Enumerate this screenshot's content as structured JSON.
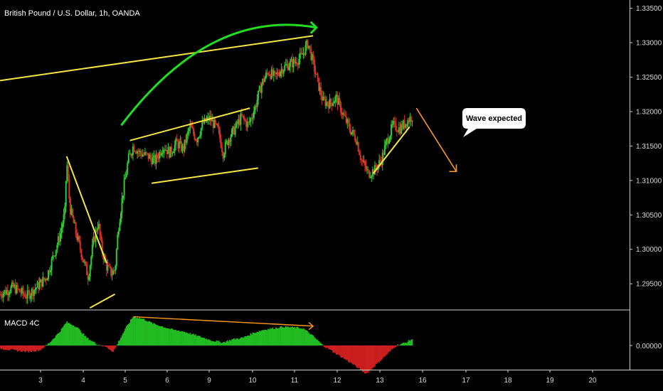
{
  "header": {
    "title": "British Pound / U.S. Dollar, 1h, OANDA"
  },
  "indicator": {
    "name": "MACD 4C",
    "zero_label": "0.00000"
  },
  "annotation": {
    "callout": "Wave expected"
  },
  "colors": {
    "background": "#000000",
    "up_candle": "#2ecc2e",
    "down_candle": "#d93025",
    "trendline": "#f5e642",
    "arrow_green": "#22dd22",
    "arrow_orange": "#ff9a1a",
    "macd_up": "#22bb22",
    "macd_down": "#cc1f1f"
  },
  "chart_data": [
    {
      "type": "candlestick",
      "title": "British Pound / U.S. Dollar, 1h, OANDA",
      "x_ticks": [
        "3",
        "4",
        "5",
        "6",
        "9",
        "10",
        "11",
        "12",
        "13",
        "16",
        "17",
        "18",
        "19",
        "20"
      ],
      "x_range": [
        2.0,
        20.9
      ],
      "y_ticks": [
        "1.29500",
        "1.30000",
        "1.30500",
        "1.31000",
        "1.31500",
        "1.32000",
        "1.32500",
        "1.33000",
        "1.33500"
      ],
      "y_range": [
        1.2912,
        1.3362
      ],
      "price_path": [
        [
          2.0,
          1.2935
        ],
        [
          2.4,
          1.2945
        ],
        [
          2.8,
          1.2932
        ],
        [
          3.1,
          1.2945
        ],
        [
          3.4,
          1.296
        ],
        [
          3.6,
          1.299
        ],
        [
          3.8,
          1.302
        ],
        [
          3.95,
          1.3055
        ],
        [
          4.0,
          1.313
        ],
        [
          4.1,
          1.306
        ],
        [
          4.3,
          1.302
        ],
        [
          4.5,
          1.2985
        ],
        [
          4.65,
          1.296
        ],
        [
          4.8,
          1.301
        ],
        [
          4.95,
          1.304
        ],
        [
          5.05,
          1.3
        ],
        [
          5.2,
          1.2975
        ],
        [
          5.35,
          1.2965
        ],
        [
          5.45,
          1.297
        ],
        [
          5.55,
          1.303
        ],
        [
          5.7,
          1.3085
        ],
        [
          5.85,
          1.313
        ],
        [
          6.0,
          1.315
        ],
        [
          6.2,
          1.314
        ],
        [
          6.45,
          1.3135
        ],
        [
          6.65,
          1.3128
        ],
        [
          6.9,
          1.315
        ],
        [
          7.1,
          1.314
        ],
        [
          7.3,
          1.3155
        ],
        [
          7.5,
          1.3145
        ],
        [
          7.7,
          1.3178
        ],
        [
          7.9,
          1.316
        ],
        [
          8.1,
          1.3183
        ],
        [
          8.3,
          1.319
        ],
        [
          8.55,
          1.3172
        ],
        [
          8.7,
          1.314
        ],
        [
          8.85,
          1.316
        ],
        [
          9.05,
          1.3175
        ],
        [
          9.25,
          1.3192
        ],
        [
          9.45,
          1.318
        ],
        [
          9.65,
          1.3205
        ],
        [
          9.85,
          1.324
        ],
        [
          10.05,
          1.3258
        ],
        [
          10.25,
          1.325
        ],
        [
          10.45,
          1.3262
        ],
        [
          10.65,
          1.3268
        ],
        [
          10.85,
          1.3272
        ],
        [
          11.05,
          1.328
        ],
        [
          11.25,
          1.33
        ],
        [
          11.4,
          1.327
        ],
        [
          11.55,
          1.324
        ],
        [
          11.7,
          1.3215
        ],
        [
          11.9,
          1.3212
        ],
        [
          12.1,
          1.322
        ],
        [
          12.3,
          1.3195
        ],
        [
          12.5,
          1.3175
        ],
        [
          12.7,
          1.316
        ],
        [
          12.85,
          1.313
        ],
        [
          13.05,
          1.311
        ],
        [
          13.25,
          1.3115
        ],
        [
          13.45,
          1.313
        ],
        [
          13.6,
          1.3155
        ],
        [
          13.8,
          1.318
        ],
        [
          14.0,
          1.3175
        ],
        [
          14.2,
          1.3185
        ],
        [
          14.4,
          1.3195
        ]
      ],
      "macd": [
        [
          2.0,
          -0.1
        ],
        [
          2.4,
          -0.15
        ],
        [
          2.8,
          -0.2
        ],
        [
          3.2,
          -0.15
        ],
        [
          3.5,
          0.1
        ],
        [
          3.8,
          0.45
        ],
        [
          4.0,
          0.75
        ],
        [
          4.3,
          0.6
        ],
        [
          4.6,
          0.25
        ],
        [
          4.9,
          0.05
        ],
        [
          5.2,
          -0.05
        ],
        [
          5.4,
          -0.2
        ],
        [
          5.6,
          0.2
        ],
        [
          5.8,
          0.6
        ],
        [
          6.0,
          0.92
        ],
        [
          6.3,
          0.85
        ],
        [
          6.6,
          0.7
        ],
        [
          6.9,
          0.6
        ],
        [
          7.2,
          0.5
        ],
        [
          7.5,
          0.45
        ],
        [
          7.8,
          0.35
        ],
        [
          8.1,
          0.25
        ],
        [
          8.4,
          0.15
        ],
        [
          8.7,
          0.1
        ],
        [
          9.0,
          0.2
        ],
        [
          9.3,
          0.25
        ],
        [
          9.6,
          0.4
        ],
        [
          9.9,
          0.5
        ],
        [
          10.2,
          0.55
        ],
        [
          10.5,
          0.6
        ],
        [
          10.8,
          0.58
        ],
        [
          11.1,
          0.55
        ],
        [
          11.4,
          0.3
        ],
        [
          11.7,
          0.0
        ],
        [
          12.0,
          -0.2
        ],
        [
          12.3,
          -0.4
        ],
        [
          12.6,
          -0.6
        ],
        [
          12.85,
          -0.8
        ],
        [
          13.0,
          -0.9
        ],
        [
          13.3,
          -0.6
        ],
        [
          13.6,
          -0.3
        ],
        [
          13.9,
          0.0
        ],
        [
          14.2,
          0.1
        ],
        [
          14.4,
          0.22
        ]
      ],
      "annotations": [
        {
          "kind": "line",
          "color": "trendline",
          "from": [
            2.0,
            1.3245
          ],
          "to": [
            11.4,
            1.331
          ]
        },
        {
          "kind": "line",
          "color": "trendline",
          "from": [
            4.0,
            1.3135
          ],
          "to": [
            5.2,
            1.298
          ]
        },
        {
          "kind": "line",
          "color": "trendline",
          "from": [
            4.7,
            1.2915
          ],
          "to": [
            5.45,
            1.2935
          ]
        },
        {
          "kind": "line",
          "color": "trendline",
          "from": [
            5.9,
            1.3158
          ],
          "to": [
            9.5,
            1.3205
          ]
        },
        {
          "kind": "line",
          "color": "trendline",
          "from": [
            6.55,
            1.3096
          ],
          "to": [
            9.75,
            1.3118
          ]
        },
        {
          "kind": "line",
          "color": "trendline",
          "from": [
            13.2,
            1.311
          ],
          "to": [
            14.3,
            1.3178
          ]
        },
        {
          "kind": "arrow-curve",
          "color": "arrow_green",
          "from": [
            5.64,
            1.318
          ],
          "ctrl": [
            8.3,
            1.335
          ],
          "to": [
            11.5,
            1.3322
          ]
        },
        {
          "kind": "arrow",
          "color": "arrow_orange",
          "from": [
            14.5,
            1.3205
          ],
          "to": [
            15.7,
            1.3113
          ]
        },
        {
          "kind": "macd-arrow",
          "color": "arrow_orange",
          "from": [
            6.0,
            0.92
          ],
          "to": [
            11.4,
            0.62
          ]
        }
      ]
    }
  ]
}
